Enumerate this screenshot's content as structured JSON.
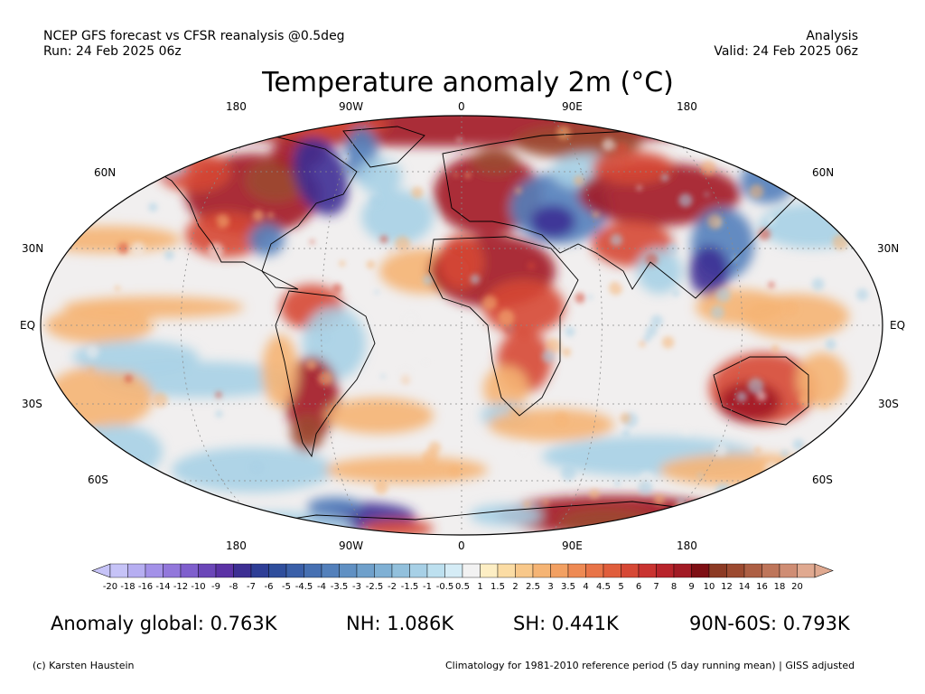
{
  "header": {
    "left_line1": "NCEP GFS forecast vs CFSR reanalysis @0.5deg",
    "left_line2": "Run: 24 Feb 2025 06z",
    "right_line1": "Analysis",
    "right_line2": "Valid: 24 Feb 2025 06z"
  },
  "title": "Temperature anomaly 2m (°C)",
  "axes": {
    "top_lon": [
      "180",
      "90W",
      "0",
      "90E",
      "180"
    ],
    "bottom_lon": [
      "180",
      "90W",
      "0",
      "90E",
      "180"
    ],
    "left_lat": [
      "60N",
      "30N",
      "EQ",
      "30S",
      "60S"
    ],
    "right_lat": [
      "60N",
      "30N",
      "EQ",
      "30S",
      "60S"
    ]
  },
  "colorbar": {
    "labels": [
      "-20",
      "-18",
      "-16",
      "-14",
      "-12",
      "-10",
      "-9",
      "-8",
      "-7",
      "-6",
      "-5",
      "-4.5",
      "-4",
      "-3.5",
      "-3",
      "-2.5",
      "-2",
      "-1.5",
      "-1",
      "-0.5",
      "0.5",
      "1",
      "1.5",
      "2",
      "2.5",
      "3",
      "3.5",
      "4",
      "4.5",
      "5",
      "6",
      "7",
      "8",
      "9",
      "10",
      "12",
      "14",
      "16",
      "18",
      "20"
    ],
    "colors": [
      "#c6c3f7",
      "#b6aef1",
      "#a391e8",
      "#9277db",
      "#7f5fcd",
      "#6b46b8",
      "#5b32a5",
      "#3d2f93",
      "#2e3e96",
      "#2f4e9c",
      "#3a5fa8",
      "#4670b2",
      "#5380bb",
      "#6090c3",
      "#6fa0cb",
      "#7fb0d4",
      "#92c0dc",
      "#a7d0e6",
      "#bde0ef",
      "#d5ecf6",
      "#f2f2f2",
      "#fdeec4",
      "#fbdca4",
      "#f8c88a",
      "#f5b474",
      "#f2a062",
      "#ee8a54",
      "#e87448",
      "#e05e3c",
      "#d64835",
      "#c93330",
      "#b8242b",
      "#a21b25",
      "#7e0f14",
      "#8c3a24",
      "#9c4a30",
      "#ad5f44",
      "#be755a",
      "#cf8d74",
      "#e0a990"
    ]
  },
  "stats": {
    "global": "Anomaly global: 0.763K",
    "nh": "NH: 1.086K",
    "sh": "SH: 0.441K",
    "polar": "90N-60S: 0.793K"
  },
  "footer": {
    "left": "(c) Karsten Haustein",
    "right": "Climatology for 1981-2010 reference period (5 day running mean) | GISS adjusted"
  },
  "map_colors": {
    "ocean_base": "#f1efef",
    "warm": "#f5b474",
    "hot": "#d64835",
    "very_hot": "#a21b25",
    "extreme": "#9c4a30",
    "cool": "#a7d0e6",
    "cold": "#5380bb",
    "very_cold": "#3d2f93",
    "land_line": "#000000"
  }
}
